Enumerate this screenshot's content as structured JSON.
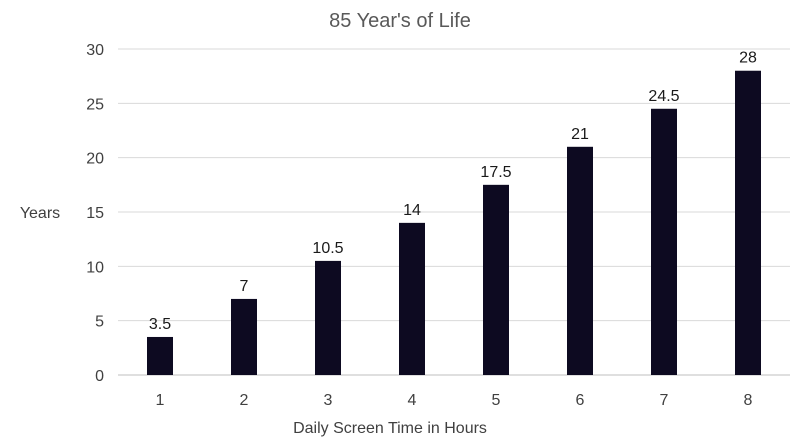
{
  "chart_data": {
    "type": "bar",
    "title": "85 Year's of Life",
    "xlabel": "Daily Screen Time in Hours",
    "ylabel": "Years",
    "categories": [
      "1",
      "2",
      "3",
      "4",
      "5",
      "6",
      "7",
      "8"
    ],
    "values": [
      3.5,
      7,
      10.5,
      14,
      17.5,
      21,
      24.5,
      28
    ],
    "data_labels": [
      "3.5",
      "7",
      "10.5",
      "14",
      "17.5",
      "21",
      "24.5",
      "28"
    ],
    "ylim": [
      0,
      30
    ],
    "yticks": [
      0,
      5,
      10,
      15,
      20,
      25,
      30
    ],
    "ytick_labels": [
      "0",
      "5",
      "10",
      "15",
      "20",
      "25",
      "30"
    ],
    "grid": true,
    "legend": "none",
    "colors": {
      "bar": "#0d0a21",
      "grid": "#d9d9d9",
      "axis": "#bfbfbf"
    }
  }
}
